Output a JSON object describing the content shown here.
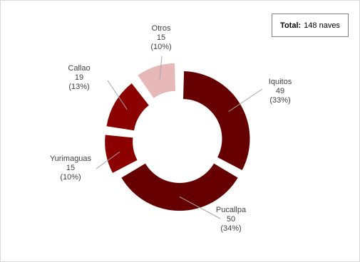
{
  "total_box": {
    "label": "Total:",
    "value": "148 naves"
  },
  "chart_data": {
    "type": "pie",
    "style": "exploded-doughnut",
    "title": "",
    "total": 148,
    "slices": [
      {
        "name": "Iquitos",
        "value": 49,
        "percent": "(33%)",
        "color": "#660000"
      },
      {
        "name": "Pucallpa",
        "value": 50,
        "percent": "(34%)",
        "color": "#660000"
      },
      {
        "name": "Yurimaguas",
        "value": 15,
        "percent": "(10%)",
        "color": "#8b0000"
      },
      {
        "name": "Callao",
        "value": 19,
        "percent": "(13%)",
        "color": "#8b0000"
      },
      {
        "name": "Otros",
        "value": 15,
        "percent": "(10%)",
        "color": "#e6b8b7"
      }
    ],
    "legend": "none"
  }
}
